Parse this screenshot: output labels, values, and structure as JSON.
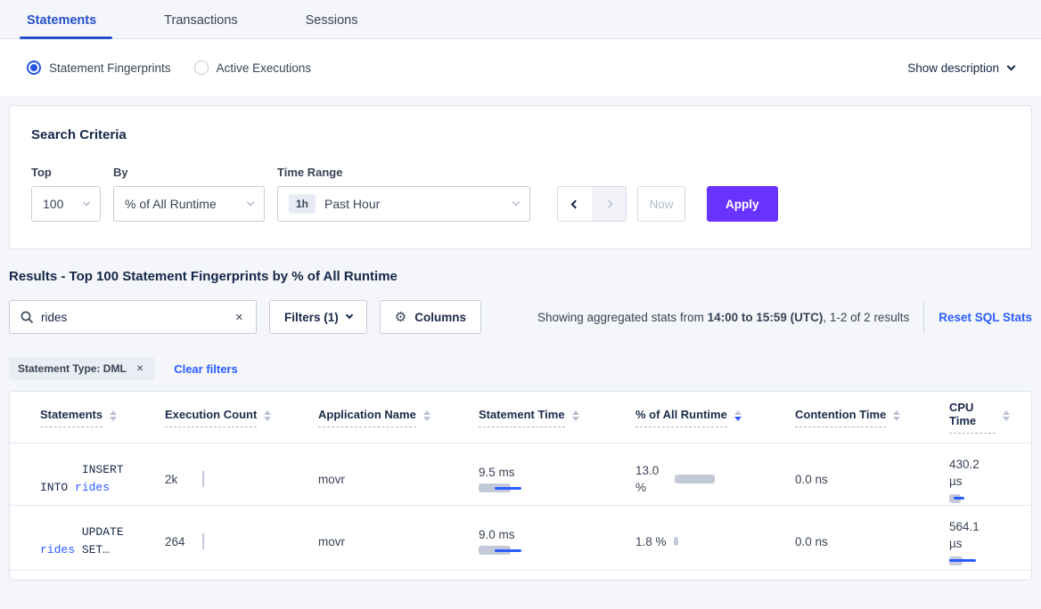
{
  "tabs": [
    {
      "label": "Statements",
      "active": true
    },
    {
      "label": "Transactions",
      "active": false
    },
    {
      "label": "Sessions",
      "active": false
    }
  ],
  "view_toggle": {
    "fingerprints_label": "Statement Fingerprints",
    "active_executions_label": "Active Executions",
    "show_description_label": "Show description"
  },
  "search_criteria": {
    "title": "Search Criteria",
    "top_label": "Top",
    "top_value": "100",
    "by_label": "By",
    "by_value": "% of All Runtime",
    "time_range_label": "Time Range",
    "time_range_badge": "1h",
    "time_range_value": "Past Hour",
    "now_label": "Now",
    "apply_label": "Apply"
  },
  "results": {
    "heading": "Results - Top 100 Statement Fingerprints by % of All Runtime",
    "search_value": "rides",
    "clear_glyph": "✕",
    "filters_label": "Filters (1)",
    "columns_label": "Columns",
    "gear_glyph": "⚙",
    "stats_prefix": "Showing aggregated stats from ",
    "stats_bold": "14:00 to 15:59 (UTC)",
    "stats_suffix": ", 1-2 of 2 results",
    "reset_label": "Reset SQL Stats",
    "filter_pill_label": "Statement Type: DML",
    "clear_filters_label": "Clear filters"
  },
  "table": {
    "columns": [
      "Statements",
      "Execution Count",
      "Application Name",
      "Statement Time",
      "% of All Runtime",
      "Contention Time",
      "CPU Time"
    ],
    "sorted_column": "% of All Runtime",
    "sort_direction": "desc",
    "rows": [
      {
        "statement_prefix": "INSERT INTO ",
        "statement_link": "rides",
        "statement_suffix": "",
        "execution_count": "2k",
        "application_name": "movr",
        "statement_time": "9.5 ms",
        "pct_of_all_runtime": "13.0 %",
        "contention_time": "0.0 ns",
        "cpu_time": "430.2 µs",
        "bars": {
          "count_h": 18,
          "stmt_gray": 36,
          "stmt_blue": 30,
          "pct_gray": 45,
          "cpu_gray": 13,
          "cpu_blue": 12
        }
      },
      {
        "statement_prefix": "UPDATE ",
        "statement_link": "rides",
        "statement_suffix": " SET…",
        "execution_count": "264",
        "application_name": "movr",
        "statement_time": "9.0 ms",
        "pct_of_all_runtime": "1.8 %",
        "contention_time": "0.0 ns",
        "cpu_time": "564.1 µs",
        "bars": {
          "count_h": 18,
          "stmt_gray": 36,
          "stmt_blue": 30,
          "pct_gray": 5,
          "cpu_gray": 15,
          "cpu_blue": 30
        }
      }
    ]
  }
}
